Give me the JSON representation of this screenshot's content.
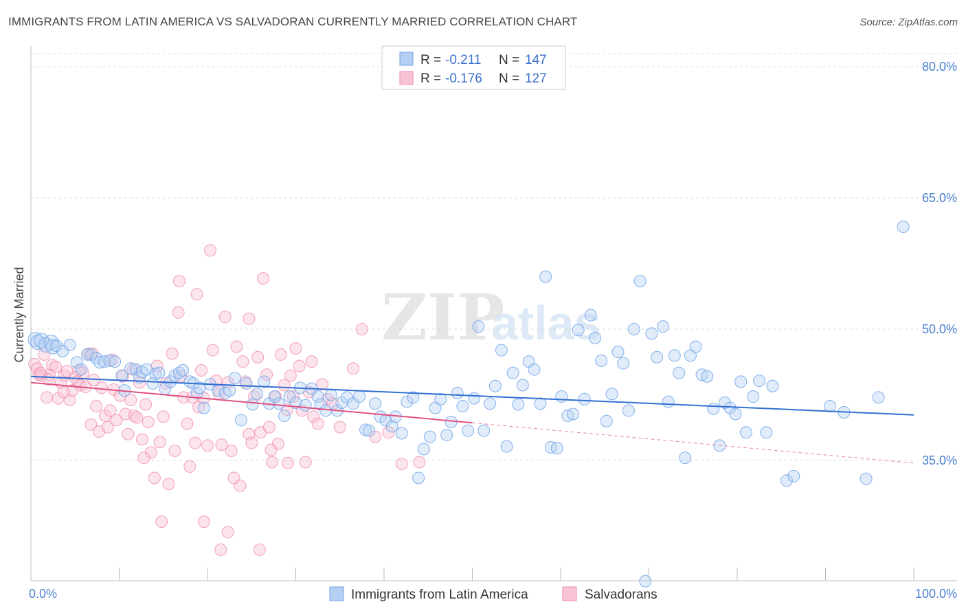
{
  "title": "IMMIGRANTS FROM LATIN AMERICA VS SALVADORAN CURRENTLY MARRIED CORRELATION CHART",
  "source": "Source: ZipAtlas.com",
  "colors": {
    "blue": "#6fa3e8",
    "blue_line": "#2f6fd0",
    "pink": "#f08bab",
    "pink_line": "#e0507f",
    "tick_label": "#4a7fd0"
  },
  "legend": {
    "rows": [
      {
        "r_label": "R =",
        "r_value": "-0.211",
        "n_label": "N =",
        "n_value": "147"
      },
      {
        "r_label": "R =",
        "r_value": "-0.176",
        "n_label": "N =",
        "n_value": "127"
      }
    ]
  },
  "bottom_legend": {
    "series1": "Immigrants from Latin America",
    "series2": "Salvadorans"
  },
  "chart_data": {
    "type": "scatter",
    "title": "IMMIGRANTS FROM LATIN AMERICA VS SALVADORAN CURRENTLY MARRIED CORRELATION CHART",
    "xlabel": "",
    "ylabel": "Currently Married",
    "xlim": [
      0,
      100
    ],
    "ylim": [
      21,
      83
    ],
    "x_tick_labels": [
      "0.0%",
      "100.0%"
    ],
    "y_ticks": [
      35,
      50,
      65,
      80
    ],
    "y_tick_labels": [
      "35.0%",
      "50.0%",
      "65.0%",
      "80.0%"
    ],
    "grid": true,
    "legend_position": "top-center",
    "series": [
      {
        "name": "Immigrants from Latin America",
        "color": "#6fa3e8",
        "r": -0.211,
        "n": 147,
        "trend": {
          "x": [
            0,
            100
          ],
          "y": [
            44.6,
            40.2
          ]
        },
        "points": [
          [
            0.5,
            48.8
          ],
          [
            0.8,
            48.5
          ],
          [
            1.2,
            48.7
          ],
          [
            1.7,
            48.2
          ],
          [
            2.3,
            48.5
          ],
          [
            2.5,
            48.0
          ],
          [
            2.9,
            48.1
          ],
          [
            3.6,
            47.5
          ],
          [
            4.4,
            48.2
          ],
          [
            5.2,
            46.2
          ],
          [
            5.7,
            45.4
          ],
          [
            6.4,
            47.1
          ],
          [
            6.8,
            47.1
          ],
          [
            7.4,
            46.7
          ],
          [
            7.8,
            46.2
          ],
          [
            8.3,
            46.3
          ],
          [
            8.9,
            46.4
          ],
          [
            9.5,
            46.3
          ],
          [
            10.3,
            44.7
          ],
          [
            10.6,
            43.0
          ],
          [
            11.3,
            45.5
          ],
          [
            11.9,
            45.4
          ],
          [
            12.3,
            44.5
          ],
          [
            12.6,
            45.1
          ],
          [
            13.1,
            45.4
          ],
          [
            13.8,
            43.8
          ],
          [
            14.1,
            44.9
          ],
          [
            14.5,
            45.0
          ],
          [
            15.2,
            43.2
          ],
          [
            15.8,
            44.0
          ],
          [
            16.3,
            44.7
          ],
          [
            16.8,
            45.0
          ],
          [
            17.2,
            45.3
          ],
          [
            18.0,
            44.0
          ],
          [
            18.4,
            43.8
          ],
          [
            18.8,
            42.7
          ],
          [
            19.1,
            43.3
          ],
          [
            19.6,
            41.0
          ],
          [
            20.3,
            43.7
          ],
          [
            21.2,
            43.0
          ],
          [
            22.0,
            42.7
          ],
          [
            22.5,
            43.0
          ],
          [
            23.1,
            44.4
          ],
          [
            23.8,
            39.6
          ],
          [
            24.4,
            43.8
          ],
          [
            25.1,
            41.4
          ],
          [
            25.6,
            42.6
          ],
          [
            26.4,
            44.0
          ],
          [
            27.0,
            41.5
          ],
          [
            27.6,
            42.3
          ],
          [
            28.1,
            41.5
          ],
          [
            28.7,
            40.1
          ],
          [
            29.3,
            42.3
          ],
          [
            30.0,
            41.6
          ],
          [
            30.5,
            43.3
          ],
          [
            31.1,
            41.3
          ],
          [
            31.8,
            43.2
          ],
          [
            32.5,
            42.3
          ],
          [
            32.8,
            41.4
          ],
          [
            33.4,
            40.7
          ],
          [
            34.0,
            42.5
          ],
          [
            34.7,
            40.7
          ],
          [
            35.2,
            41.6
          ],
          [
            35.8,
            42.2
          ],
          [
            36.5,
            41.5
          ],
          [
            37.2,
            42.3
          ],
          [
            37.9,
            38.5
          ],
          [
            38.3,
            38.4
          ],
          [
            39.0,
            41.5
          ],
          [
            39.6,
            40.0
          ],
          [
            40.2,
            39.6
          ],
          [
            40.9,
            38.9
          ],
          [
            41.3,
            40.0
          ],
          [
            42.0,
            38.1
          ],
          [
            42.6,
            41.7
          ],
          [
            43.3,
            42.2
          ],
          [
            43.9,
            33.0
          ],
          [
            44.5,
            36.3
          ],
          [
            45.2,
            37.7
          ],
          [
            45.8,
            41.0
          ],
          [
            46.4,
            42.0
          ],
          [
            47.1,
            37.9
          ],
          [
            47.6,
            39.4
          ],
          [
            48.3,
            42.7
          ],
          [
            48.9,
            41.2
          ],
          [
            49.5,
            38.4
          ],
          [
            50.2,
            42.1
          ],
          [
            50.7,
            50.3
          ],
          [
            51.3,
            38.4
          ],
          [
            52.0,
            41.5
          ],
          [
            52.6,
            43.5
          ],
          [
            53.3,
            47.6
          ],
          [
            53.9,
            36.6
          ],
          [
            54.6,
            45.0
          ],
          [
            55.2,
            41.4
          ],
          [
            55.7,
            43.6
          ],
          [
            56.4,
            46.3
          ],
          [
            57.0,
            45.4
          ],
          [
            57.7,
            41.5
          ],
          [
            58.3,
            56.0
          ],
          [
            58.9,
            36.5
          ],
          [
            59.6,
            36.4
          ],
          [
            60.1,
            42.3
          ],
          [
            60.8,
            40.1
          ],
          [
            61.4,
            40.3
          ],
          [
            62.0,
            49.9
          ],
          [
            62.7,
            42.0
          ],
          [
            63.4,
            51.6
          ],
          [
            63.9,
            49.0
          ],
          [
            64.6,
            46.4
          ],
          [
            65.2,
            39.5
          ],
          [
            65.8,
            42.6
          ],
          [
            66.5,
            47.4
          ],
          [
            67.1,
            46.1
          ],
          [
            67.7,
            40.7
          ],
          [
            68.3,
            50.0
          ],
          [
            69.0,
            55.5
          ],
          [
            69.6,
            21.2
          ],
          [
            70.3,
            49.5
          ],
          [
            70.9,
            46.8
          ],
          [
            71.6,
            50.3
          ],
          [
            72.2,
            41.7
          ],
          [
            72.9,
            47.0
          ],
          [
            73.4,
            45.0
          ],
          [
            74.1,
            35.3
          ],
          [
            74.7,
            47.0
          ],
          [
            75.3,
            48.0
          ],
          [
            76.0,
            44.8
          ],
          [
            76.6,
            44.6
          ],
          [
            77.3,
            40.9
          ],
          [
            78.0,
            36.7
          ],
          [
            78.6,
            41.6
          ],
          [
            79.2,
            41.0
          ],
          [
            79.8,
            40.3
          ],
          [
            80.4,
            44.0
          ],
          [
            81.0,
            38.2
          ],
          [
            81.8,
            42.3
          ],
          [
            82.5,
            44.1
          ],
          [
            83.3,
            38.2
          ],
          [
            84.0,
            43.5
          ],
          [
            85.6,
            32.7
          ],
          [
            86.4,
            33.2
          ],
          [
            90.5,
            41.2
          ],
          [
            92.1,
            40.5
          ],
          [
            94.6,
            32.9
          ],
          [
            96.0,
            42.2
          ],
          [
            98.8,
            61.7
          ]
        ]
      },
      {
        "name": "Salvadorans",
        "color": "#f08bab",
        "r": -0.176,
        "n": 127,
        "trend": {
          "x": [
            0,
            50
          ],
          "y": [
            43.9,
            39.3
          ]
        },
        "trend_dashed": {
          "x": [
            50,
            100
          ],
          "y": [
            39.3,
            34.7
          ]
        },
        "points": [
          [
            0.4,
            46.0
          ],
          [
            0.7,
            45.5
          ],
          [
            0.9,
            44.8
          ],
          [
            1.2,
            44.7
          ],
          [
            1.5,
            47.1
          ],
          [
            1.8,
            42.2
          ],
          [
            2.1,
            44.8
          ],
          [
            2.4,
            45.9
          ],
          [
            2.8,
            45.7
          ],
          [
            3.1,
            42.1
          ],
          [
            3.4,
            43.9
          ],
          [
            3.8,
            44.7
          ],
          [
            4.1,
            45.2
          ],
          [
            4.4,
            41.9
          ],
          [
            4.7,
            43.0
          ],
          [
            5.0,
            44.5
          ],
          [
            5.3,
            44.0
          ],
          [
            5.6,
            43.6
          ],
          [
            5.9,
            45.0
          ],
          [
            6.2,
            43.4
          ],
          [
            6.5,
            47.2
          ],
          [
            6.8,
            39.1
          ],
          [
            7.1,
            44.2
          ],
          [
            7.4,
            41.2
          ],
          [
            7.7,
            38.3
          ],
          [
            8.0,
            43.3
          ],
          [
            8.4,
            40.1
          ],
          [
            8.7,
            38.8
          ],
          [
            9.0,
            40.7
          ],
          [
            9.4,
            43.1
          ],
          [
            9.7,
            39.6
          ],
          [
            10.1,
            42.4
          ],
          [
            10.4,
            44.6
          ],
          [
            10.7,
            40.3
          ],
          [
            11.0,
            38.0
          ],
          [
            11.3,
            41.9
          ],
          [
            11.7,
            40.1
          ],
          [
            12.0,
            39.9
          ],
          [
            12.3,
            43.9
          ],
          [
            12.6,
            37.4
          ],
          [
            13.0,
            41.4
          ],
          [
            13.3,
            39.4
          ],
          [
            13.6,
            35.9
          ],
          [
            14.0,
            33.0
          ],
          [
            14.3,
            45.8
          ],
          [
            14.6,
            37.1
          ],
          [
            15.0,
            40.0
          ],
          [
            15.3,
            43.8
          ],
          [
            15.6,
            32.3
          ],
          [
            16.0,
            47.2
          ],
          [
            16.3,
            36.1
          ],
          [
            16.7,
            51.9
          ],
          [
            17.0,
            44.6
          ],
          [
            17.3,
            42.2
          ],
          [
            17.7,
            39.2
          ],
          [
            18.0,
            34.3
          ],
          [
            18.3,
            42.2
          ],
          [
            18.6,
            37.0
          ],
          [
            19.0,
            41.1
          ],
          [
            19.3,
            45.3
          ],
          [
            19.6,
            42.1
          ],
          [
            20.0,
            36.7
          ],
          [
            20.3,
            59.0
          ],
          [
            20.6,
            47.6
          ],
          [
            21.0,
            44.1
          ],
          [
            21.3,
            42.6
          ],
          [
            21.6,
            36.8
          ],
          [
            22.0,
            51.4
          ],
          [
            22.3,
            43.9
          ],
          [
            22.7,
            36.1
          ],
          [
            23.0,
            33.0
          ],
          [
            23.3,
            48.0
          ],
          [
            23.7,
            32.1
          ],
          [
            24.0,
            46.3
          ],
          [
            24.3,
            44.0
          ],
          [
            24.7,
            38.0
          ],
          [
            25.0,
            37.0
          ],
          [
            25.3,
            42.3
          ],
          [
            25.7,
            46.8
          ],
          [
            26.0,
            38.2
          ],
          [
            26.3,
            55.8
          ],
          [
            26.7,
            44.8
          ],
          [
            27.0,
            38.8
          ],
          [
            27.3,
            34.8
          ],
          [
            27.7,
            42.3
          ],
          [
            28.0,
            36.9
          ],
          [
            28.3,
            47.1
          ],
          [
            28.7,
            43.6
          ],
          [
            29.0,
            40.8
          ],
          [
            29.4,
            44.7
          ],
          [
            29.7,
            42.3
          ],
          [
            30.0,
            47.8
          ],
          [
            30.4,
            45.8
          ],
          [
            30.7,
            40.7
          ],
          [
            31.1,
            34.8
          ],
          [
            31.5,
            42.8
          ],
          [
            32.0,
            40.0
          ],
          [
            32.5,
            39.2
          ],
          [
            33.0,
            43.7
          ],
          [
            33.6,
            42.0
          ],
          [
            34.2,
            41.5
          ],
          [
            35.0,
            38.8
          ],
          [
            36.5,
            45.5
          ],
          [
            37.5,
            50.0
          ],
          [
            39.0,
            37.7
          ],
          [
            40.5,
            38.2
          ],
          [
            42.0,
            34.6
          ],
          [
            44.0,
            34.8
          ],
          [
            16.8,
            55.5
          ],
          [
            18.8,
            54.0
          ],
          [
            19.6,
            28.0
          ],
          [
            21.5,
            24.8
          ],
          [
            22.3,
            26.8
          ],
          [
            14.8,
            28.0
          ],
          [
            25.9,
            24.8
          ],
          [
            27.2,
            36.2
          ],
          [
            29.1,
            34.7
          ],
          [
            31.8,
            46.3
          ],
          [
            12.8,
            35.3
          ],
          [
            11.6,
            45.4
          ],
          [
            9.2,
            46.5
          ],
          [
            7.0,
            47.2
          ],
          [
            5.4,
            45.3
          ],
          [
            3.7,
            42.8
          ],
          [
            2.0,
            44.3
          ],
          [
            1.1,
            45.0
          ],
          [
            24.7,
            51.2
          ]
        ]
      }
    ]
  }
}
